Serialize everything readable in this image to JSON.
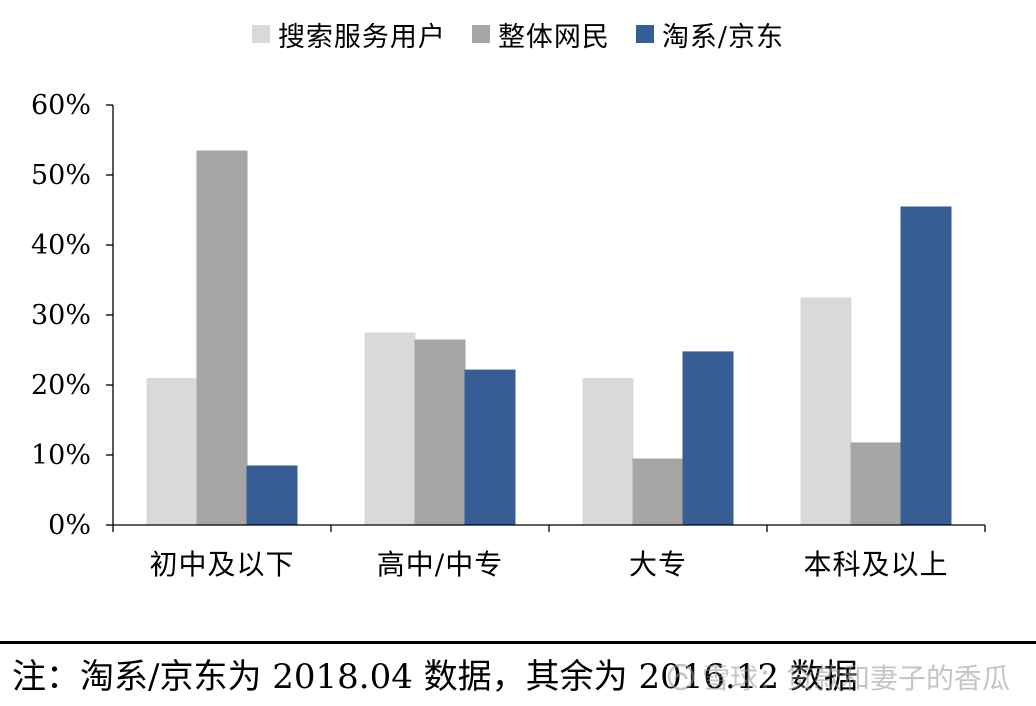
{
  "chart_data": {
    "type": "bar",
    "categories": [
      "初中及以下",
      "高中/中专",
      "大专",
      "本科及以上"
    ],
    "series": [
      {
        "name": "搜索服务用户",
        "values": [
          21,
          27.5,
          21,
          32.5
        ],
        "color": "#d9d9d9"
      },
      {
        "name": "整体网民",
        "values": [
          53.5,
          26.5,
          9.5,
          11.8
        ],
        "color": "#a6a6a6"
      },
      {
        "name": "淘系/京东",
        "values": [
          8.5,
          22.2,
          24.8,
          45.5
        ],
        "color": "#365e94"
      }
    ],
    "ylim": [
      0,
      60
    ],
    "yticks": [
      "0%",
      "10%",
      "20%",
      "30%",
      "40%",
      "50%",
      "60%"
    ],
    "title": "",
    "xlabel": "",
    "ylabel": "",
    "legend_position": "top-center",
    "grid": false
  },
  "footnote": "注：淘系/京东为 2018.04 数据，其余为 2016.12 数据",
  "watermark": {
    "text": "雪球：贷款和妻子的香瓜",
    "icon": "snowball-logo-icon"
  }
}
